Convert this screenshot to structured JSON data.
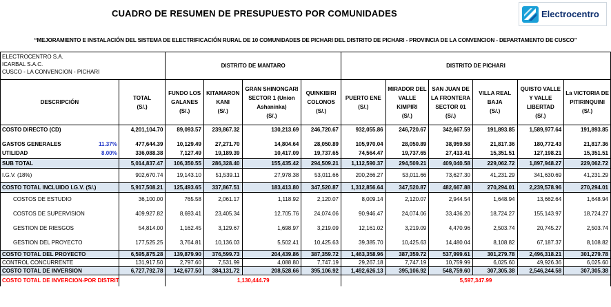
{
  "title": "CUADRO DE RESUMEN DE PRESUPUESTO POR COMUNIDADES",
  "logo": {
    "brand": "Electrocentro",
    "icon": "electrocentro-logo-icon"
  },
  "subtitle": "“MEJORAMIENTO E INSTALACIÓN DEL SISTEMA DE ELECTRIFICACIÓN RURAL DE 10 COMUNIDADES DE PICHARI DEL DISTRITO DE PICHARI - PROVINCIA DE LA CONVENCION - DEPARTAMENTO DE CUSCO”",
  "company_lines": [
    "ELECTROCENTRO S.A.",
    "ICARBAL S.A.C.",
    "CUSCO  - LA CONVENCION - PICHARI"
  ],
  "district_headers": {
    "mantaro": "DISTRITO DE MANTARO",
    "pichari": "DISTRITO DE PICHARI"
  },
  "column_headers": {
    "descripcion": "DESCRIPCIÓN",
    "total": [
      "TOTAL",
      "(S/.)"
    ],
    "communities": [
      {
        "name": "FUNDO LOS GALANES",
        "unit": "(S/.)"
      },
      {
        "name": "KITAMARON KANI",
        "unit": "(S/.)"
      },
      {
        "name": "GRAN SHINONGARI SECTOR 1 (Union Ashaninka)",
        "unit": "(S/.)"
      },
      {
        "name": "QUINKIBIRI COLONOS",
        "unit": "(S/.)"
      },
      {
        "name": "PUERTO ENE",
        "unit": "(S/.)"
      },
      {
        "name": "MIRADOR DEL VALLE KIMPIRI",
        "unit": "(S/.)"
      },
      {
        "name": "SAN JUAN DE LA FRONTERA SECTOR 01",
        "unit": "(S/.)"
      },
      {
        "name": "VILLA REAL BAJA",
        "unit": "(S/.)"
      },
      {
        "name": "QUISTO VALLE Y VALLE LIBERTAD",
        "unit": "(S/.)"
      },
      {
        "name": "La VICTORIA DE PITIRINQUINI",
        "unit": "(S/.)"
      }
    ]
  },
  "rows": [
    {
      "label": "COSTO DIRECTO (CD)",
      "total": "4,201,104.70",
      "values": [
        "89,093.57",
        "239,867.32",
        "130,213.69",
        "246,720.67",
        "932,055.86",
        "246,720.67",
        "342,667.59",
        "191,893.85",
        "1,589,977.64",
        "191,893.85"
      ]
    },
    {
      "label": "GASTOS GENERALES",
      "pct": "11.37%",
      "total": "477,644.39",
      "values": [
        "10,129.49",
        "27,271.70",
        "14,804.64",
        "28,050.89",
        "105,970.04",
        "28,050.89",
        "38,959.58",
        "21,817.36",
        "180,772.43",
        "21,817.36"
      ]
    },
    {
      "label": "UTILIDAD",
      "pct": "8.00%",
      "total": "336,088.38",
      "values": [
        "7,127.49",
        "19,189.39",
        "10,417.09",
        "19,737.65",
        "74,564.47",
        "19,737.65",
        "27,413.41",
        "15,351.51",
        "127,198.21",
        "15,351.51"
      ]
    },
    {
      "label": "SUB TOTAL",
      "total": "5,014,837.47",
      "values": [
        "106,350.55",
        "286,328.40",
        "155,435.42",
        "294,509.21",
        "1,112,590.37",
        "294,509.21",
        "409,040.58",
        "229,062.72",
        "1,897,948.27",
        "229,062.72"
      ]
    },
    {
      "label": "I.G.V. (18%)",
      "total": "902,670.74",
      "values": [
        "19,143.10",
        "51,539.11",
        "27,978.38",
        "53,011.66",
        "200,266.27",
        "53,011.66",
        "73,627.30",
        "41,231.29",
        "341,630.69",
        "41,231.29"
      ]
    },
    {
      "label": "COSTO TOTAL INCLUIDO I.G.V. (S/.)",
      "total": "5,917,508.21",
      "values": [
        "125,493.65",
        "337,867.51",
        "183,413.80",
        "347,520.87",
        "1,312,856.64",
        "347,520.87",
        "482,667.88",
        "270,294.01",
        "2,239,578.96",
        "270,294.01"
      ]
    },
    {
      "label": "COSTOS DE ESTUDIO",
      "total": "36,100.00",
      "values": [
        "765.58",
        "2,061.17",
        "1,118.92",
        "2,120.07",
        "8,009.14",
        "2,120.07",
        "2,944.54",
        "1,648.94",
        "13,662.64",
        "1,648.94"
      ]
    },
    {
      "label": "COSTOS DE SUPERVISION",
      "total": "409,927.82",
      "values": [
        "8,693.41",
        "23,405.34",
        "12,705.76",
        "24,074.06",
        "90,946.47",
        "24,074.06",
        "33,436.20",
        "18,724.27",
        "155,143.97",
        "18,724.27"
      ]
    },
    {
      "label": "GESTION DE RIESGOS",
      "total": "54,814.00",
      "values": [
        "1,162.45",
        "3,129.67",
        "1,698.97",
        "3,219.09",
        "12,161.02",
        "3,219.09",
        "4,470.96",
        "2,503.74",
        "20,745.27",
        "2,503.74"
      ]
    },
    {
      "label": "GESTION DEL PROYECTO",
      "total": "177,525.25",
      "values": [
        "3,764.81",
        "10,136.03",
        "5,502.41",
        "10,425.63",
        "39,385.70",
        "10,425.63",
        "14,480.04",
        "8,108.82",
        "67,187.37",
        "8,108.82"
      ]
    },
    {
      "label": "COSTO TOTAL DEL PROYECTO",
      "total": "6,595,875.28",
      "values": [
        "139,879.90",
        "376,599.73",
        "204,439.86",
        "387,359.72",
        "1,463,358.96",
        "387,359.72",
        "537,999.61",
        "301,279.78",
        "2,496,318.21",
        "301,279.78"
      ]
    },
    {
      "label": "CONTROL CONCURRENTE",
      "total": "131,917.50",
      "values": [
        "2,797.60",
        "7,531.99",
        "4,088.80",
        "7,747.19",
        "29,267.18",
        "7,747.19",
        "10,759.99",
        "6,025.60",
        "49,926.36",
        "6,025.60"
      ]
    },
    {
      "label": "COSTO TOTAL DE INVERSION",
      "total": "6,727,792.78",
      "values": [
        "142,677.50",
        "384,131.72",
        "208,528.66",
        "395,106.92",
        "1,492,626.13",
        "395,106.92",
        "548,759.60",
        "307,305.38",
        "2,546,244.58",
        "307,305.38"
      ]
    }
  ],
  "district_total": {
    "label": "COSTO TOTAL DE INVERCION-POR DISTRITO",
    "mantaro": "1,130,444.79",
    "pichari": "5,597,347.99"
  }
}
